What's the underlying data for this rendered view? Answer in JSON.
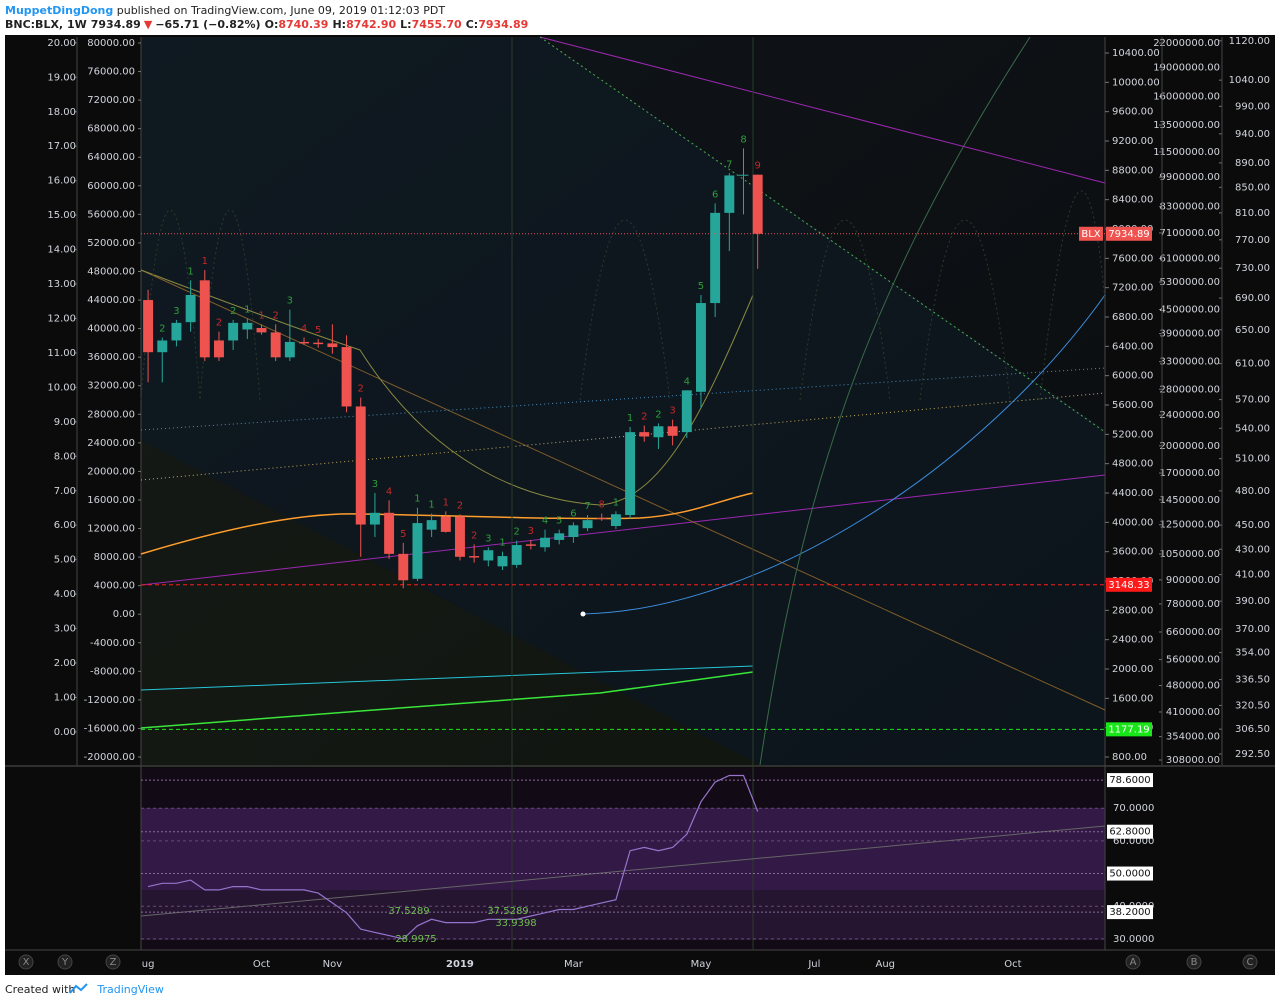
{
  "header": {
    "author": "MuppetDingDong",
    "published": " published on TradingView.com, June 09, 2019 01:12:03 PDT",
    "symbol": "BNC:BLX, 1W",
    "last": "7934.89",
    "arrow": "▼",
    "change": "−65.71 (−0.82%)",
    "ohlc": [
      {
        "key": "O:",
        "value": "8740.39"
      },
      {
        "key": "H:",
        "value": "8742.90"
      },
      {
        "key": "L:",
        "value": "7455.70"
      },
      {
        "key": "C:",
        "value": "7934.89"
      }
    ]
  },
  "footer": {
    "text": "Created with",
    "brand": "TradingView"
  },
  "toolbar": {
    "left": [
      "X",
      "Y",
      "Z"
    ],
    "right": [
      "A",
      "B",
      "C"
    ]
  },
  "chart_data": {
    "type": "candlestick",
    "up_color": "#26a69a",
    "down_color": "#ef5350",
    "last_label": "BLX",
    "categories": [
      "ug",
      null,
      null,
      null,
      null,
      null,
      null,
      null,
      "Oct",
      null,
      null,
      null,
      null,
      "Nov",
      null,
      null,
      null,
      null,
      null,
      null,
      null,
      null,
      "2019",
      null,
      null,
      null,
      null,
      null,
      null,
      null,
      "Mar",
      null,
      null,
      null,
      null,
      null,
      null,
      null,
      null,
      "May",
      null,
      null,
      null,
      null,
      null,
      null,
      null,
      "Jul",
      null,
      null,
      null,
      null,
      "Aug",
      null,
      null,
      null,
      null,
      null,
      null,
      null,
      null,
      "Oct",
      null,
      null,
      null,
      null,
      null,
      null
    ],
    "open": [
      7031,
      6320,
      6480,
      6730,
      7300,
      6480,
      6480,
      6630,
      6650,
      6590,
      6250,
      6460,
      6450,
      6440,
      6390,
      5580,
      3970,
      4130,
      3570,
      3230,
      3900,
      4080,
      4080,
      3540,
      3480,
      3400,
      3420,
      3700,
      3660,
      3760,
      3800,
      3920,
      4060,
      3950,
      4100,
      5230,
      5160,
      5310,
      5230,
      5780,
      6990,
      8220,
      8730,
      8740.39,
      null,
      null,
      null,
      null,
      null,
      null,
      null,
      null,
      null,
      null,
      null,
      null,
      null,
      null,
      null,
      null,
      null,
      null,
      null,
      null,
      null,
      null,
      null,
      null
    ],
    "high": [
      7170,
      6520,
      6760,
      7300,
      7440,
      6600,
      6760,
      6780,
      6700,
      6700,
      6900,
      6520,
      6500,
      6700,
      6550,
      5700,
      4400,
      4300,
      3720,
      4200,
      4120,
      4150,
      4110,
      3700,
      3660,
      3600,
      3750,
      3760,
      3900,
      3900,
      4000,
      4100,
      4120,
      4150,
      5300,
      5320,
      5350,
      5400,
      5800,
      7100,
      8350,
      8760,
      9100,
      8742.9,
      null,
      null,
      null,
      null,
      null,
      null,
      null,
      null,
      null,
      null,
      null,
      null,
      null,
      null,
      null,
      null,
      null,
      null,
      null,
      null,
      null,
      null,
      null,
      null
    ],
    "low": [
      5910,
      5910,
      6400,
      6600,
      6200,
      6200,
      6350,
      6500,
      6560,
      6200,
      6200,
      6420,
      6380,
      6300,
      5500,
      3530,
      3800,
      3500,
      3100,
      3200,
      3800,
      3860,
      3480,
      3450,
      3400,
      3350,
      3380,
      3630,
      3600,
      3700,
      3720,
      3880,
      4020,
      3910,
      4050,
      5100,
      5000,
      5050,
      5150,
      5550,
      6800,
      7700,
      8200,
      7455.7,
      null,
      null,
      null,
      null,
      null,
      null,
      null,
      null,
      null,
      null,
      null,
      null,
      null,
      null,
      null,
      null,
      null,
      null,
      null,
      null,
      null,
      null,
      null,
      null
    ],
    "close": [
      6320,
      6480,
      6720,
      7100,
      6250,
      6250,
      6720,
      6720,
      6590,
      6250,
      6460,
      6440,
      6430,
      6390,
      5580,
      3970,
      4130,
      3570,
      3210,
      3990,
      4030,
      3870,
      3530,
      3520,
      3620,
      3540,
      3690,
      3680,
      3790,
      3850,
      3960,
      4030,
      4050,
      4110,
      5230,
      5170,
      5310,
      5180,
      5800,
      6990,
      8220,
      8730,
      8740,
      7934.89,
      null,
      null,
      null,
      null,
      null,
      null,
      null,
      null,
      null,
      null,
      null,
      null,
      null,
      null,
      null,
      null,
      null,
      null,
      null,
      null,
      null,
      null,
      null,
      null
    ],
    "td_counts": [
      null,
      2,
      3,
      1,
      1,
      2,
      2,
      1,
      1,
      2,
      3,
      4,
      5,
      null,
      null,
      2,
      3,
      4,
      5,
      1,
      1,
      1,
      2,
      2,
      3,
      1,
      2,
      3,
      4,
      5,
      6,
      7,
      8,
      1,
      1,
      2,
      2,
      3,
      4,
      5,
      6,
      7,
      8,
      9,
      null,
      null,
      null,
      null,
      null,
      null,
      null,
      null,
      null,
      null,
      null,
      null,
      null,
      null,
      null,
      null,
      null,
      null,
      null,
      null,
      null,
      null,
      null,
      null
    ],
    "ylim": [
      691,
      10618
    ],
    "yticks": [
      {
        "value": 10400,
        "label": "10400.00"
      },
      {
        "value": 10000,
        "label": "10000.00"
      },
      {
        "value": 9600,
        "label": "9600.00"
      },
      {
        "value": 9200,
        "label": "9200.00"
      },
      {
        "value": 8800,
        "label": "8800.00"
      },
      {
        "value": 8400,
        "label": "8400.00"
      },
      {
        "value": 8000,
        "label": "8000.00"
      },
      {
        "value": 7600,
        "label": "7600.00"
      },
      {
        "value": 7200,
        "label": "7200.00"
      },
      {
        "value": 6800,
        "label": "6800.00"
      },
      {
        "value": 6400,
        "label": "6400.00"
      },
      {
        "value": 6000,
        "label": "6000.00"
      },
      {
        "value": 5600,
        "label": "5600.00"
      },
      {
        "value": 5200,
        "label": "5200.00"
      },
      {
        "value": 4800,
        "label": "4800.00"
      },
      {
        "value": 4400,
        "label": "4400.00"
      },
      {
        "value": 4000,
        "label": "4000.00"
      },
      {
        "value": 3600,
        "label": "3600.00"
      },
      {
        "value": 3200,
        "label": "3200.00"
      },
      {
        "value": 2800,
        "label": "2800.00"
      },
      {
        "value": 2400,
        "label": "2400.00"
      },
      {
        "value": 2000,
        "label": "2000.00"
      },
      {
        "value": 1600,
        "label": "1600.00"
      },
      {
        "value": 1200,
        "label": "1200.00"
      },
      {
        "value": 800,
        "label": "800.00"
      }
    ],
    "price_levels": [
      {
        "value": 3148.33,
        "color": "#ff1a1a"
      },
      {
        "value": 1177.19,
        "color": "#19e619"
      }
    ],
    "extra_axes": [
      {
        "ylim": [
          -0.96,
          20.17
        ],
        "log": false,
        "yticks": [
          {
            "value": 20,
            "label": "20.00"
          },
          {
            "value": 19,
            "label": "19.00"
          },
          {
            "value": 18,
            "label": "18.00"
          },
          {
            "value": 17,
            "label": "17.00"
          },
          {
            "value": 16,
            "label": "16.00"
          },
          {
            "value": 15,
            "label": "15.00"
          },
          {
            "value": 14,
            "label": "14.00"
          },
          {
            "value": 13,
            "label": "13.00"
          },
          {
            "value": 12,
            "label": "12.00"
          },
          {
            "value": 11,
            "label": "11.00"
          },
          {
            "value": 10,
            "label": "10.00"
          },
          {
            "value": 9,
            "label": "9.00"
          },
          {
            "value": 8,
            "label": "8.00"
          },
          {
            "value": 7,
            "label": "7.00"
          },
          {
            "value": 6,
            "label": "6.00"
          },
          {
            "value": 5,
            "label": "5.00"
          },
          {
            "value": 4,
            "label": "4.00"
          },
          {
            "value": 3,
            "label": "3.00"
          },
          {
            "value": 2,
            "label": "2.00"
          },
          {
            "value": 1,
            "label": "1.00"
          },
          {
            "value": 0,
            "label": "0.00"
          }
        ]
      },
      {
        "ylim": [
          -21120,
          80840
        ],
        "log": false,
        "yticks": [
          {
            "value": 80000,
            "label": "80000.00"
          },
          {
            "value": 76000,
            "label": "76000.00"
          },
          {
            "value": 72000,
            "label": "72000.00"
          },
          {
            "value": 68000,
            "label": "68000.00"
          },
          {
            "value": 64000,
            "label": "64000.00"
          },
          {
            "value": 60000,
            "label": "60000.00"
          },
          {
            "value": 56000,
            "label": "56000.00"
          },
          {
            "value": 52000,
            "label": "52000.00"
          },
          {
            "value": 48000,
            "label": "48000.00"
          },
          {
            "value": 44000,
            "label": "44000.00"
          },
          {
            "value": 40000,
            "label": "40000.00"
          },
          {
            "value": 36000,
            "label": "36000.00"
          },
          {
            "value": 32000,
            "label": "32000.00"
          },
          {
            "value": 28000,
            "label": "28000.00"
          },
          {
            "value": 24000,
            "label": "24000.00"
          },
          {
            "value": 20000,
            "label": "20000.00"
          },
          {
            "value": 16000,
            "label": "16000.00"
          },
          {
            "value": 12000,
            "label": "12000.00"
          },
          {
            "value": 8000,
            "label": "8000.00"
          },
          {
            "value": 4000,
            "label": "4000.00"
          },
          {
            "value": 0,
            "label": "0.00"
          },
          {
            "value": -4000,
            "label": "-4000.00"
          },
          {
            "value": -8000,
            "label": "-8000.00"
          },
          {
            "value": -12000,
            "label": "-12000.00"
          },
          {
            "value": -16000,
            "label": "-16000.00"
          },
          {
            "value": -20000,
            "label": "-20000.00"
          }
        ]
      },
      {
        "ylim": [
          299000,
          22800000
        ],
        "log": true,
        "yticks": [
          {
            "value": 22000000,
            "label": "22000000.00"
          },
          {
            "value": 19000000,
            "label": "19000000.00"
          },
          {
            "value": 16000000,
            "label": "16000000.00"
          },
          {
            "value": 13500000,
            "label": "13500000.00"
          },
          {
            "value": 11500000,
            "label": "11500000.00"
          },
          {
            "value": 9900000,
            "label": "9900000.00"
          },
          {
            "value": 8300000,
            "label": "8300000.00"
          },
          {
            "value": 7100000,
            "label": "7100000.00"
          },
          {
            "value": 6100000,
            "label": "6100000.00"
          },
          {
            "value": 5300000,
            "label": "5300000.00"
          },
          {
            "value": 4500000,
            "label": "4500000.00"
          },
          {
            "value": 3900000,
            "label": "3900000.00"
          },
          {
            "value": 3300000,
            "label": "3300000.00"
          },
          {
            "value": 2800000,
            "label": "2800000.00"
          },
          {
            "value": 2400000,
            "label": "2400000.00"
          },
          {
            "value": 2000000,
            "label": "2000000.00"
          },
          {
            "value": 1700000,
            "label": "1700000.00"
          },
          {
            "value": 1450000,
            "label": "1450000.00"
          },
          {
            "value": 1250000,
            "label": "1250000.00"
          },
          {
            "value": 1050000,
            "label": "1050000.00"
          },
          {
            "value": 900000,
            "label": "900000.00"
          },
          {
            "value": 780000,
            "label": "780000.00"
          },
          {
            "value": 660000,
            "label": "660000.00"
          },
          {
            "value": 560000,
            "label": "560000.00"
          },
          {
            "value": 480000,
            "label": "480000.00"
          },
          {
            "value": 410000,
            "label": "410000.00"
          },
          {
            "value": 354000,
            "label": "354000.00"
          },
          {
            "value": 308000,
            "label": "308000.00"
          }
        ]
      },
      {
        "ylim": [
          286.5,
          1128
        ],
        "log": true,
        "yticks": [
          {
            "value": 1120,
            "label": "1120.00"
          },
          {
            "value": 1040,
            "label": "1040.00"
          },
          {
            "value": 990,
            "label": "990.00"
          },
          {
            "value": 940,
            "label": "940.00"
          },
          {
            "value": 890,
            "label": "890.00"
          },
          {
            "value": 850,
            "label": "850.00"
          },
          {
            "value": 810,
            "label": "810.00"
          },
          {
            "value": 770,
            "label": "770.00"
          },
          {
            "value": 730,
            "label": "730.00"
          },
          {
            "value": 690,
            "label": "690.00"
          },
          {
            "value": 650,
            "label": "650.00"
          },
          {
            "value": 610,
            "label": "610.00"
          },
          {
            "value": 570,
            "label": "570.00"
          },
          {
            "value": 540,
            "label": "540.00"
          },
          {
            "value": 510,
            "label": "510.00"
          },
          {
            "value": 480,
            "label": "480.00"
          },
          {
            "value": 450,
            "label": "450.00"
          },
          {
            "value": 430,
            "label": "430.00"
          },
          {
            "value": 410,
            "label": "410.00"
          },
          {
            "value": 390,
            "label": "390.00"
          },
          {
            "value": 370,
            "label": "370.00"
          },
          {
            "value": 354,
            "label": "354.00"
          },
          {
            "value": 336.5,
            "label": "336.50"
          },
          {
            "value": 320.5,
            "label": "320.50"
          },
          {
            "value": 306.5,
            "label": "306.50"
          },
          {
            "value": 292.5,
            "label": "292.50"
          }
        ]
      }
    ],
    "rsi": [
      46,
      47,
      47,
      48,
      45,
      45,
      46,
      46,
      45,
      45,
      45,
      45,
      44,
      41,
      38,
      33,
      32,
      31,
      30,
      34,
      36,
      35,
      35,
      35,
      36,
      36,
      36,
      37,
      38,
      39,
      39,
      40,
      41,
      42,
      57,
      58,
      57,
      58,
      62,
      72,
      78,
      80,
      80,
      69,
      null,
      null,
      null,
      null,
      null,
      null,
      null,
      null,
      null,
      null,
      null,
      null,
      null,
      null,
      null,
      null,
      null,
      null,
      null,
      null,
      null,
      null,
      null,
      null
    ],
    "rsi_color": "#9575cd",
    "rsi_ylim": [
      26.6,
      82.3
    ],
    "rsi_yticks": [
      {
        "value": 70,
        "label": "70.0000"
      },
      {
        "value": 60,
        "label": "60.0000"
      },
      {
        "value": 40,
        "label": "40.0000"
      },
      {
        "value": 30,
        "label": "30.0000"
      }
    ],
    "rsi_levels": [
      {
        "value": 78.6,
        "label": "78.6000"
      },
      {
        "value": 62.8,
        "label": "62.8000"
      },
      {
        "value": 50,
        "label": "50.0000"
      },
      {
        "value": 38.2,
        "label": "38.2000"
      }
    ],
    "rsi_annotations": [
      37.5289,
      28.9975,
      37.5289,
      33.9398
    ]
  }
}
